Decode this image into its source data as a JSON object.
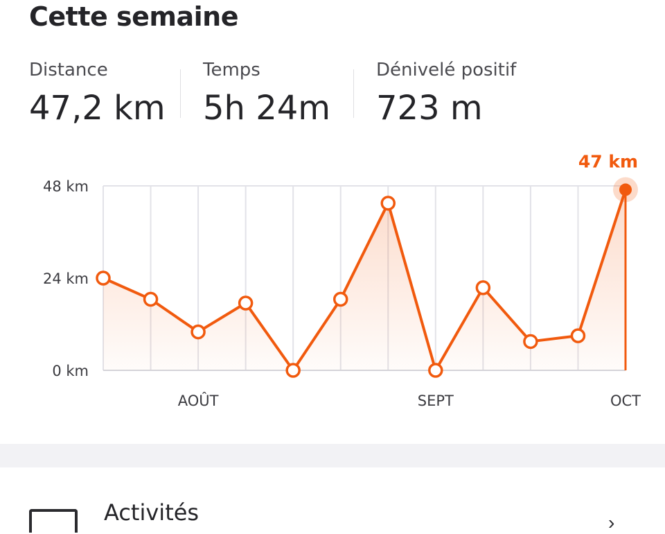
{
  "header": {
    "title": "Cette semaine"
  },
  "stats": [
    {
      "label": "Distance",
      "value": "47,2 km"
    },
    {
      "label": "Temps",
      "value": "5h 24m"
    },
    {
      "label": "Dénivelé positif",
      "value": "723 m"
    }
  ],
  "colors": {
    "accent": "#f15a0e",
    "grid": "#e2e2e8",
    "text": "#242428"
  },
  "chart_data": {
    "type": "line",
    "x": [
      1,
      2,
      3,
      4,
      5,
      6,
      7,
      8,
      9,
      10,
      11,
      12
    ],
    "values": [
      24,
      18.5,
      10,
      17.5,
      0,
      18.5,
      43.5,
      0,
      21.5,
      7.5,
      9,
      47
    ],
    "ylim": [
      0,
      48
    ],
    "yticks": [
      0,
      24,
      48
    ],
    "ytick_labels": [
      "0 km",
      "24 km",
      "48 km"
    ],
    "xtick_labels": [
      {
        "index": 3,
        "label": "AOÛT"
      },
      {
        "index": 8,
        "label": "SEPT"
      },
      {
        "index": 12,
        "label": "OCT"
      }
    ],
    "highlight": {
      "index": 12,
      "label": "47 km"
    },
    "grid": true
  },
  "list": {
    "item_label": "Activités",
    "item_icon": "activity-icon",
    "chevron_icon": "chevron-right-icon"
  }
}
